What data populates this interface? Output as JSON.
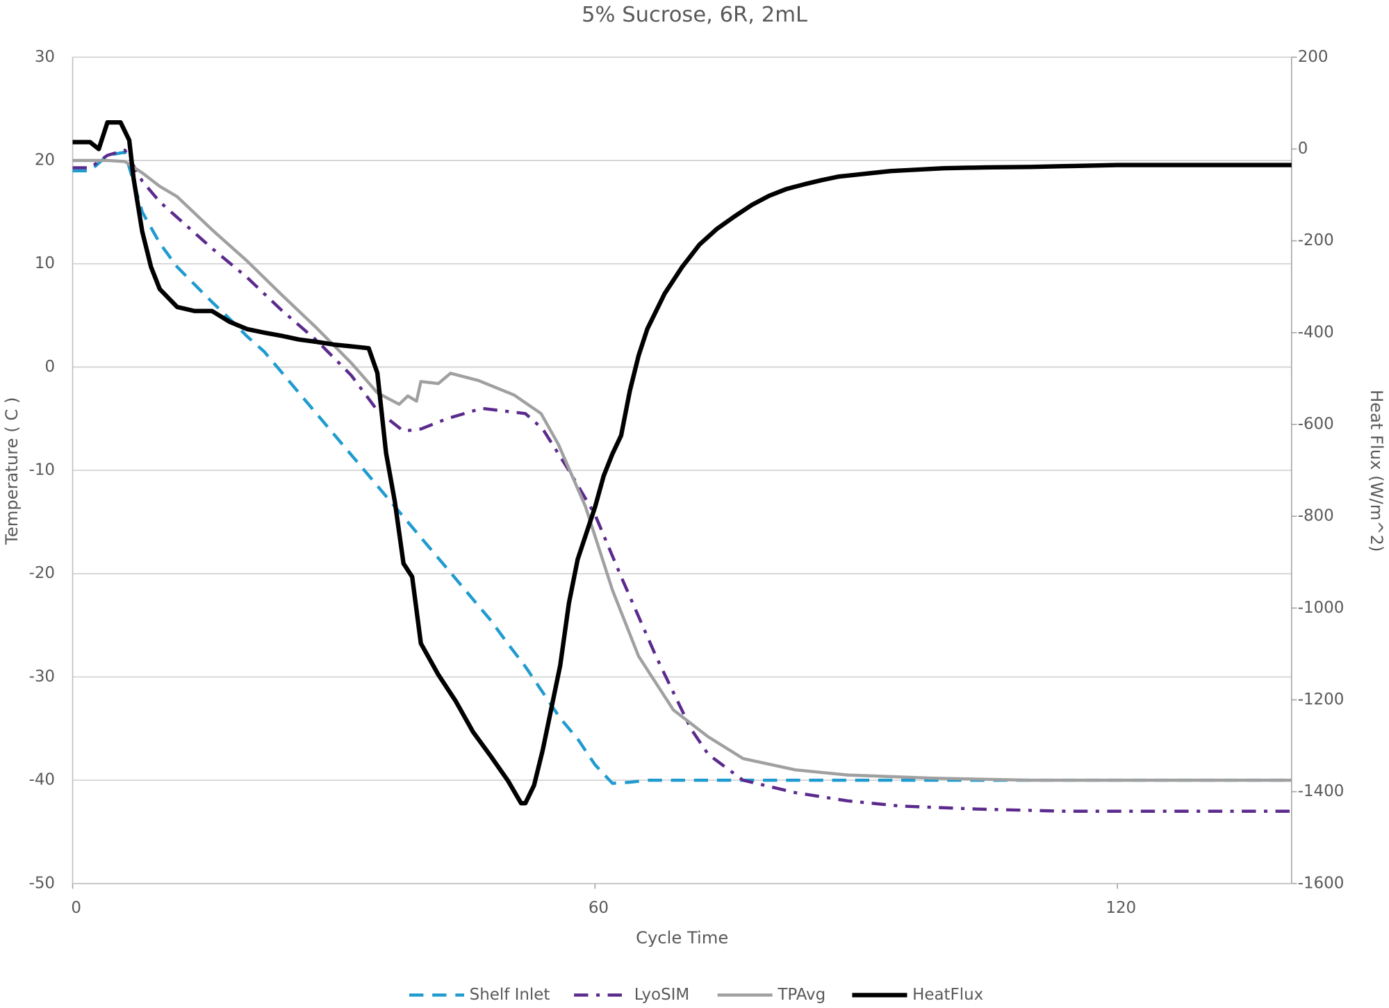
{
  "chart_data": {
    "type": "line",
    "title": "5% Sucrose, 6R, 2mL",
    "xlabel": "Cycle Time",
    "ylabel": "Temperature ( C )",
    "y2label": "Heat Flux (W/m^2)",
    "xlim": [
      0,
      140
    ],
    "xticks": [
      0,
      60,
      120
    ],
    "ylim": [
      -50,
      30
    ],
    "yticks": [
      -50,
      -40,
      -30,
      -20,
      -10,
      0,
      10,
      20,
      30
    ],
    "y2lim": [
      -1600,
      200
    ],
    "y2ticks": [
      -1600,
      -1400,
      -1200,
      -1000,
      -800,
      -600,
      -400,
      -200,
      0,
      200
    ],
    "grid": true,
    "legend": "bottom",
    "series": [
      {
        "name": "Shelf Inlet",
        "color": "#1f9bcf",
        "style": "dashed",
        "x": [
          0,
          2,
          4,
          6,
          8,
          10,
          12,
          14,
          16,
          18,
          20,
          22,
          24,
          26,
          28,
          30,
          32,
          34,
          36,
          38,
          40,
          42,
          44,
          46,
          48,
          50,
          52,
          54,
          56,
          58,
          60,
          62,
          64,
          66,
          140
        ],
        "values": [
          19,
          19,
          20.5,
          20.8,
          15,
          12,
          9.7,
          8,
          6.3,
          4.7,
          3,
          1.5,
          -0.5,
          -2.5,
          -4.5,
          -6.5,
          -8.5,
          -10.5,
          -12.5,
          -14.5,
          -16.5,
          -18.5,
          -20.5,
          -22.5,
          -24.5,
          -26.8,
          -29,
          -31.5,
          -34,
          -36,
          -38.5,
          -40.3,
          -40.2,
          -40,
          -40
        ]
      },
      {
        "name": "LyoSIM",
        "color": "#5b2a8c",
        "style": "dash-dot",
        "x": [
          0,
          2,
          4,
          6,
          8,
          10,
          12,
          16,
          20,
          24,
          28,
          32,
          35,
          38,
          40,
          43,
          47,
          52,
          54,
          57,
          60,
          63,
          67,
          71,
          73,
          77,
          83,
          89,
          95,
          104,
          114,
          140
        ],
        "values": [
          19.3,
          19.3,
          20.5,
          21,
          18,
          16,
          14.5,
          11.5,
          8.7,
          5.5,
          2.6,
          -0.8,
          -4.2,
          -6.2,
          -6,
          -5,
          -4,
          -4.5,
          -6,
          -10,
          -14.3,
          -20.3,
          -28,
          -35,
          -37.5,
          -40,
          -41.2,
          -42,
          -42.5,
          -42.8,
          -43,
          -43
        ]
      },
      {
        "name": "TPAvg",
        "color": "#a0a0a0",
        "style": "solid",
        "x": [
          0,
          4,
          6,
          8,
          10,
          12,
          16,
          20,
          24,
          28,
          32,
          35,
          37.5,
          38.5,
          39.5,
          40,
          42,
          43.4,
          46.6,
          50.7,
          53.8,
          55.8,
          58.9,
          62,
          65,
          69,
          73,
          77,
          83,
          89,
          98.6,
          110,
          140
        ],
        "values": [
          20,
          20,
          19.9,
          18.8,
          17.5,
          16.5,
          13.3,
          10.3,
          7,
          3.8,
          0.4,
          -2.5,
          -3.6,
          -2.8,
          -3.3,
          -1.4,
          -1.6,
          -0.6,
          -1.3,
          -2.7,
          -4.5,
          -7.5,
          -13.5,
          -21.6,
          -28,
          -33.2,
          -35.8,
          -37.9,
          -39,
          -39.5,
          -39.8,
          -40,
          -40
        ]
      },
      {
        "name": "HeatFlux",
        "color": "#000000",
        "style": "thick",
        "axis": "y2",
        "x": [
          0,
          2,
          3,
          4,
          5.5,
          6.5,
          7,
          8,
          9,
          10,
          12,
          14,
          16,
          18,
          20,
          22,
          24,
          26,
          28,
          30,
          32,
          34,
          35,
          36,
          37,
          38,
          39,
          40,
          42,
          44,
          46,
          48,
          50,
          51.5,
          52,
          53,
          54,
          56,
          57,
          58,
          60,
          61,
          62,
          63,
          64,
          65,
          66,
          68,
          70,
          72,
          74,
          76,
          78,
          80,
          82,
          84,
          86,
          88,
          90,
          92,
          94,
          96,
          100,
          105,
          110,
          115,
          120,
          140
        ],
        "values": [
          15,
          15,
          0,
          58,
          58,
          19,
          -64,
          -180,
          -257,
          -305,
          -344,
          -353,
          -353,
          -376,
          -392,
          -400,
          -407,
          -415,
          -420,
          -426,
          -430,
          -434,
          -488,
          -662,
          -768,
          -903,
          -932,
          -1077,
          -1145,
          -1203,
          -1270,
          -1322,
          -1376,
          -1425,
          -1425,
          -1386,
          -1309,
          -1125,
          -990,
          -894,
          -780,
          -712,
          -664,
          -624,
          -527,
          -450,
          -392,
          -315,
          -257,
          -208,
          -174,
          -147,
          -122,
          -102,
          -87,
          -77,
          -68,
          -60,
          -56,
          -52,
          -48,
          -46,
          -42,
          -40,
          -39,
          -37,
          -35,
          -35
        ]
      }
    ]
  }
}
